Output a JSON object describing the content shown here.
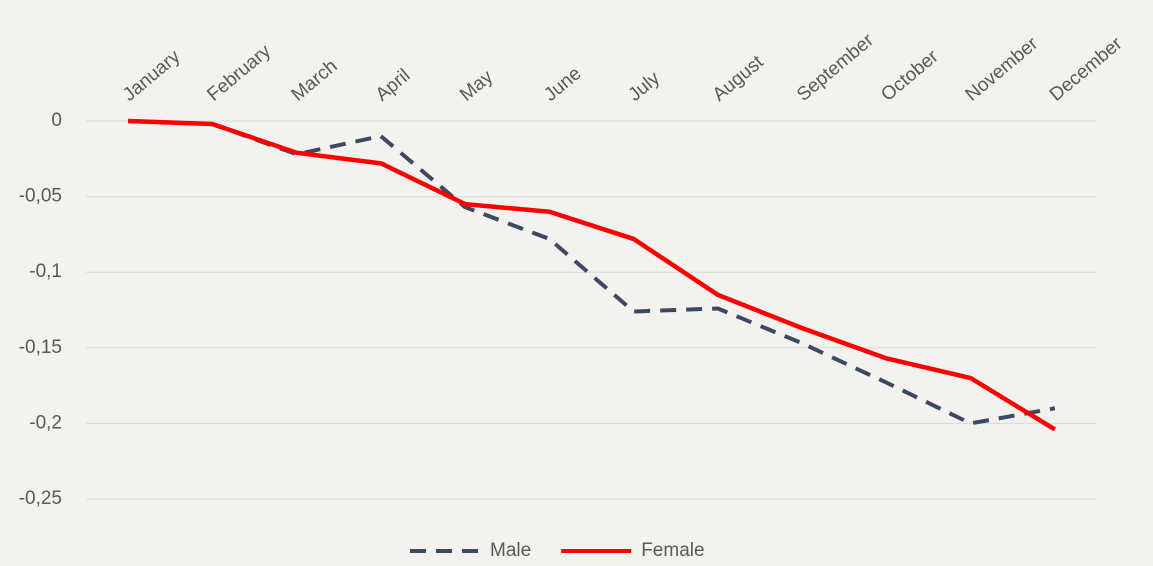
{
  "chart_data": {
    "type": "line",
    "categories": [
      "January",
      "February",
      "March",
      "April",
      "May",
      "June",
      "July",
      "August",
      "September",
      "October",
      "November",
      "December"
    ],
    "series": [
      {
        "name": "Male",
        "color": "#3b4a63",
        "dash": true,
        "values": [
          0,
          -0.002,
          -0.022,
          -0.01,
          -0.057,
          -0.078,
          -0.126,
          -0.124,
          -0.147,
          -0.173,
          -0.2,
          -0.19
        ]
      },
      {
        "name": "Female",
        "color": "#ff0000",
        "dash": false,
        "values": [
          0,
          -0.002,
          -0.021,
          -0.028,
          -0.055,
          -0.06,
          -0.078,
          -0.115,
          -0.137,
          -0.157,
          -0.17,
          -0.204
        ]
      }
    ],
    "ylim": [
      -0.25,
      0
    ],
    "yticks": [
      0,
      {
        "value": -0.05,
        "label": "-0,05"
      },
      {
        "value": -0.1,
        "label": "-0,1"
      },
      {
        "value": -0.15,
        "label": "-0,15"
      },
      {
        "value": -0.2,
        "label": "-0,2"
      },
      {
        "value": -0.25,
        "label": "-0,25"
      }
    ],
    "grid": true,
    "legend": "bottom"
  }
}
